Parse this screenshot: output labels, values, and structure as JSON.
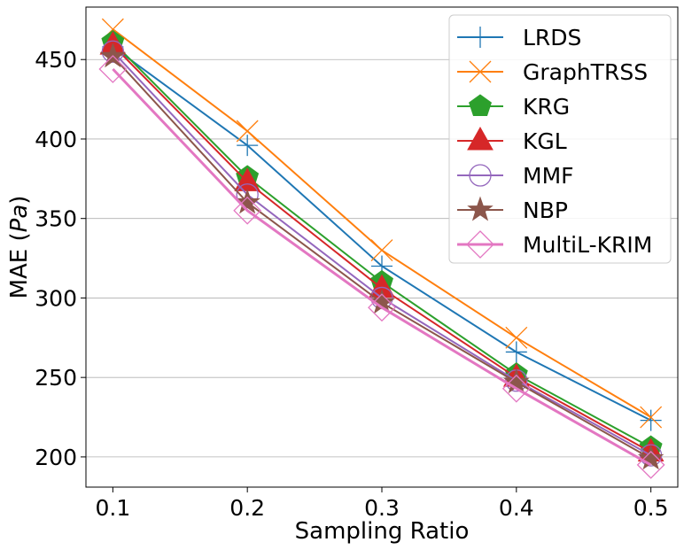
{
  "chart_data": {
    "type": "line",
    "xlabel": "Sampling Ratio",
    "ylabel": "MAE (Pa)",
    "ylabel_parts": [
      "MAE (",
      "Pa",
      ")"
    ],
    "x": [
      0.1,
      0.2,
      0.3,
      0.4,
      0.5
    ],
    "x_tick_labels": [
      "0.1",
      "0.2",
      "0.3",
      "0.4",
      "0.5"
    ],
    "y_ticks": [
      200,
      250,
      300,
      350,
      400,
      450
    ],
    "y_tick_labels": [
      "200",
      "250",
      "300",
      "350",
      "400",
      "450"
    ],
    "xlim": [
      0.08,
      0.52
    ],
    "ylim": [
      181,
      483
    ],
    "grid": "horizontal",
    "legend_position": "upper-right",
    "series": [
      {
        "name": "LRDS",
        "values": [
          458,
          396,
          320,
          266,
          223
        ],
        "color": "#1f77b4",
        "marker": "plus"
      },
      {
        "name": "GraphTRSS",
        "values": [
          469,
          405,
          330,
          275,
          225
        ],
        "color": "#ff7f0e",
        "marker": "x"
      },
      {
        "name": "KRG",
        "values": [
          461,
          376,
          310,
          252,
          206
        ],
        "color": "#2ca02c",
        "marker": "pentagon"
      },
      {
        "name": "KGL",
        "values": [
          459,
          373,
          306,
          250,
          203
        ],
        "color": "#d62728",
        "marker": "triangle"
      },
      {
        "name": "MMF",
        "values": [
          455,
          365,
          300,
          248,
          201
        ],
        "color": "#9467bd",
        "marker": "circle"
      },
      {
        "name": "NBP",
        "values": [
          452,
          360,
          297,
          247,
          199
        ],
        "color": "#8c564b",
        "marker": "star"
      },
      {
        "name": "MultiL-KRIM",
        "values": [
          444,
          355,
          294,
          243,
          195
        ],
        "color": "#e377c2",
        "marker": "diamond"
      }
    ]
  }
}
